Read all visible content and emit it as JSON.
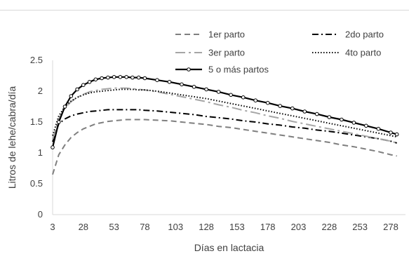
{
  "chart_data": {
    "type": "line",
    "xlabel": "Días en lactacia",
    "ylabel": "Litros de lehe/cabra/día",
    "xlim": [
      3,
      290
    ],
    "ylim": [
      0,
      2.5
    ],
    "x_ticks": [
      3,
      28,
      53,
      78,
      103,
      128,
      153,
      178,
      203,
      228,
      253,
      278
    ],
    "y_ticks": [
      0,
      0.5,
      1,
      1.5,
      2,
      2.5
    ],
    "y_tick_labels": [
      "0",
      "0.5",
      "1",
      "1.5",
      "2",
      "2.5"
    ],
    "grid": false,
    "legend_position": "top",
    "x": [
      3,
      8,
      13,
      18,
      23,
      28,
      33,
      38,
      43,
      48,
      53,
      58,
      63,
      68,
      73,
      78,
      88,
      98,
      108,
      118,
      128,
      138,
      148,
      158,
      168,
      178,
      188,
      198,
      208,
      218,
      228,
      238,
      248,
      258,
      268,
      278,
      283
    ],
    "series": [
      {
        "name": "1er parto",
        "style": "dashed",
        "color": "#7f7f7f",
        "values": [
          0.65,
          0.97,
          1.13,
          1.25,
          1.33,
          1.39,
          1.43,
          1.47,
          1.49,
          1.51,
          1.52,
          1.53,
          1.54,
          1.54,
          1.54,
          1.54,
          1.53,
          1.52,
          1.5,
          1.48,
          1.46,
          1.43,
          1.41,
          1.38,
          1.35,
          1.32,
          1.29,
          1.26,
          1.23,
          1.2,
          1.17,
          1.13,
          1.1,
          1.06,
          1.02,
          0.97,
          0.95
        ]
      },
      {
        "name": "2do parto",
        "style": "dash-dot",
        "color": "#000000",
        "values": [
          1.18,
          1.47,
          1.55,
          1.6,
          1.63,
          1.65,
          1.67,
          1.68,
          1.69,
          1.7,
          1.7,
          1.7,
          1.7,
          1.7,
          1.7,
          1.69,
          1.68,
          1.66,
          1.64,
          1.62,
          1.59,
          1.57,
          1.55,
          1.52,
          1.5,
          1.47,
          1.45,
          1.42,
          1.4,
          1.37,
          1.35,
          1.32,
          1.29,
          1.26,
          1.23,
          1.19,
          1.16
        ]
      },
      {
        "name": "3er parto",
        "style": "long-dash-dot",
        "color": "#a6a6a6",
        "values": [
          1.22,
          1.55,
          1.72,
          1.83,
          1.9,
          1.95,
          1.99,
          2.01,
          2.03,
          2.04,
          2.05,
          2.05,
          2.05,
          2.04,
          2.03,
          2.02,
          1.99,
          1.95,
          1.91,
          1.87,
          1.83,
          1.78,
          1.74,
          1.69,
          1.65,
          1.6,
          1.56,
          1.51,
          1.47,
          1.43,
          1.39,
          1.35,
          1.31,
          1.27,
          1.23,
          1.19,
          1.16
        ]
      },
      {
        "name": "4to parto",
        "style": "dotted",
        "color": "#000000",
        "values": [
          1.28,
          1.6,
          1.75,
          1.84,
          1.9,
          1.94,
          1.97,
          1.99,
          2.0,
          2.01,
          2.02,
          2.03,
          2.03,
          2.03,
          2.02,
          2.02,
          2.0,
          1.97,
          1.94,
          1.91,
          1.88,
          1.84,
          1.8,
          1.76,
          1.72,
          1.68,
          1.64,
          1.6,
          1.56,
          1.52,
          1.48,
          1.44,
          1.4,
          1.36,
          1.32,
          1.28,
          1.26
        ]
      },
      {
        "name": "5 o más partos",
        "style": "solid-with-markers",
        "color": "#000000",
        "values": [
          1.09,
          1.5,
          1.75,
          1.92,
          2.03,
          2.1,
          2.15,
          2.19,
          2.21,
          2.22,
          2.23,
          2.23,
          2.23,
          2.22,
          2.22,
          2.21,
          2.18,
          2.15,
          2.11,
          2.07,
          2.03,
          1.99,
          1.94,
          1.9,
          1.85,
          1.81,
          1.76,
          1.72,
          1.67,
          1.63,
          1.58,
          1.54,
          1.49,
          1.44,
          1.39,
          1.33,
          1.3
        ]
      }
    ]
  }
}
